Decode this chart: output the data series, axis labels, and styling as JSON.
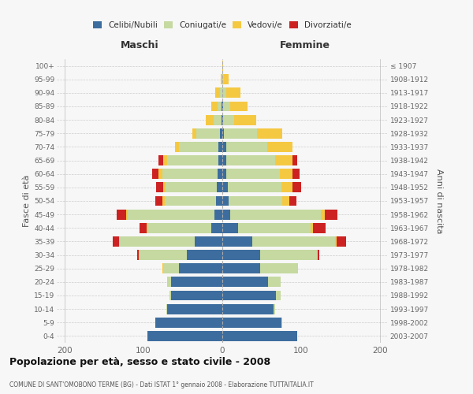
{
  "age_groups": [
    "0-4",
    "5-9",
    "10-14",
    "15-19",
    "20-24",
    "25-29",
    "30-34",
    "35-39",
    "40-44",
    "45-49",
    "50-54",
    "55-59",
    "60-64",
    "65-69",
    "70-74",
    "75-79",
    "80-84",
    "85-89",
    "90-94",
    "95-99",
    "100+"
  ],
  "birth_years": [
    "2003-2007",
    "1998-2002",
    "1993-1997",
    "1988-1992",
    "1983-1987",
    "1978-1982",
    "1973-1977",
    "1968-1972",
    "1963-1967",
    "1958-1962",
    "1953-1957",
    "1948-1952",
    "1943-1947",
    "1938-1942",
    "1933-1937",
    "1928-1932",
    "1923-1927",
    "1918-1922",
    "1913-1917",
    "1908-1912",
    "≤ 1907"
  ],
  "colors": {
    "celibi": "#3d6d9e",
    "coniugati": "#c5d9a0",
    "vedovi": "#f5c842",
    "divorziati": "#cc2222"
  },
  "males": {
    "celibi": [
      95,
      85,
      70,
      65,
      65,
      55,
      45,
      35,
      14,
      10,
      8,
      7,
      6,
      5,
      5,
      3,
      1,
      1,
      0,
      0,
      0
    ],
    "coniugati": [
      0,
      0,
      1,
      2,
      5,
      20,
      60,
      95,
      80,
      110,
      65,
      65,
      70,
      65,
      50,
      30,
      10,
      5,
      3,
      0,
      0
    ],
    "vedovi": [
      0,
      0,
      0,
      0,
      0,
      1,
      1,
      1,
      2,
      2,
      3,
      3,
      5,
      5,
      5,
      5,
      10,
      8,
      6,
      2,
      0
    ],
    "divorziati": [
      0,
      0,
      0,
      0,
      0,
      0,
      2,
      8,
      9,
      12,
      9,
      9,
      8,
      6,
      0,
      0,
      0,
      0,
      0,
      0,
      0
    ]
  },
  "females": {
    "nubili": [
      95,
      75,
      65,
      68,
      58,
      48,
      48,
      38,
      20,
      10,
      8,
      7,
      5,
      5,
      5,
      2,
      1,
      1,
      0,
      0,
      0
    ],
    "coniugate": [
      0,
      1,
      2,
      6,
      16,
      48,
      72,
      105,
      92,
      115,
      68,
      68,
      68,
      62,
      52,
      42,
      14,
      9,
      5,
      2,
      0
    ],
    "vedove": [
      0,
      0,
      0,
      0,
      0,
      0,
      1,
      2,
      3,
      5,
      9,
      14,
      16,
      22,
      32,
      32,
      28,
      22,
      18,
      6,
      1
    ],
    "divorziate": [
      0,
      0,
      0,
      0,
      0,
      0,
      2,
      12,
      16,
      16,
      9,
      11,
      9,
      6,
      0,
      0,
      0,
      0,
      0,
      0,
      0
    ]
  },
  "xlim": [
    -210,
    210
  ],
  "xticks": [
    -200,
    -100,
    0,
    100,
    200
  ],
  "xticklabels": [
    "200",
    "100",
    "0",
    "100",
    "200"
  ],
  "title": "Popolazione per età, sesso e stato civile - 2008",
  "subtitle": "COMUNE DI SANT'OMOBONO TERME (BG) - Dati ISTAT 1° gennaio 2008 - Elaborazione TUTTAITALIA.IT",
  "ylabel_left": "Fasce di età",
  "ylabel_right": "Anni di nascita",
  "label_maschi": "Maschi",
  "label_femmine": "Femmine",
  "legend_labels": [
    "Celibi/Nubili",
    "Coniugati/e",
    "Vedovi/e",
    "Divorziati/e"
  ],
  "bg_color": "#f7f7f7",
  "bar_height": 0.75
}
